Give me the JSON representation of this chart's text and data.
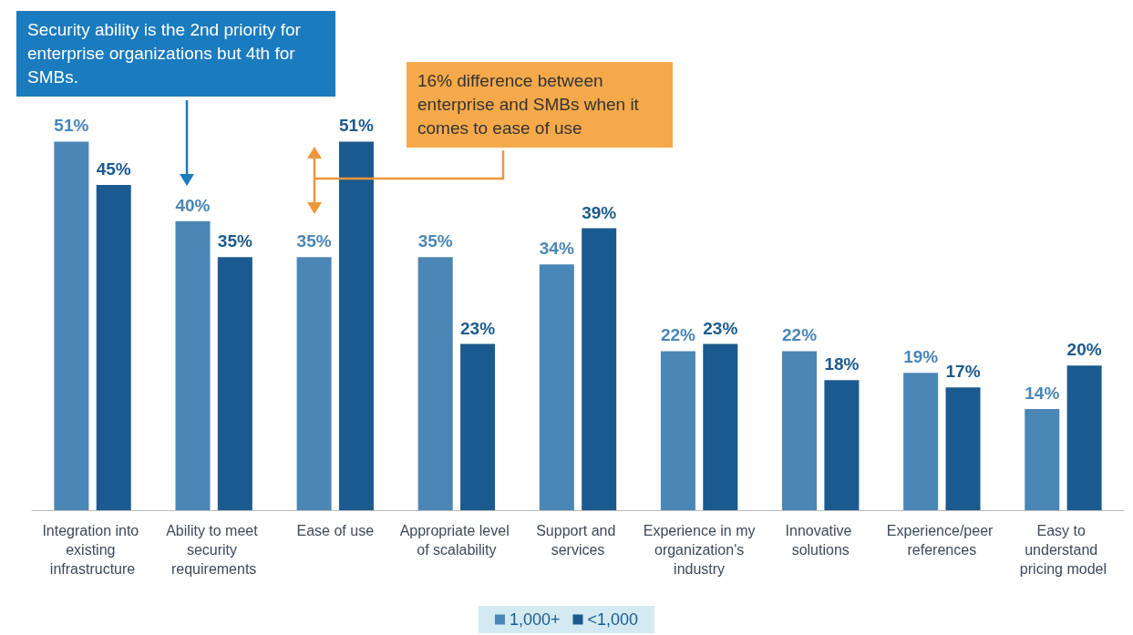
{
  "chart_data": {
    "type": "bar",
    "categories": [
      "Integration into existing infrastructure",
      "Ability to meet security requirements",
      "Ease of use",
      "Appropriate level of scalability",
      "Support and services",
      "Experience in my organization's industry",
      "Innovative solutions",
      "Experience/peer references",
      "Easy to understand pricing model"
    ],
    "series": [
      {
        "name": "1,000+",
        "color": "#4a86b6",
        "values": [
          51,
          40,
          35,
          35,
          34,
          22,
          22,
          19,
          14
        ],
        "value_labels": [
          "51%",
          "40%",
          "35%",
          "35%",
          "34%",
          "22%",
          "22%",
          "19%",
          "14%"
        ]
      },
      {
        "name": "<1,000",
        "color": "#1b5a8e",
        "values": [
          45,
          35,
          51,
          23,
          39,
          23,
          18,
          17,
          20
        ],
        "value_labels": [
          "45%",
          "35%",
          "51%",
          "23%",
          "39%",
          "23%",
          "18%",
          "17%",
          "20%"
        ]
      }
    ],
    "annotations": [
      "Security ability is the 2nd priority for enterprise organizations but 4th for SMBs.",
      "16% difference between enterprise and SMBs when it comes to ease of use"
    ],
    "legend": "bottom",
    "tick_labels": "x"
  }
}
